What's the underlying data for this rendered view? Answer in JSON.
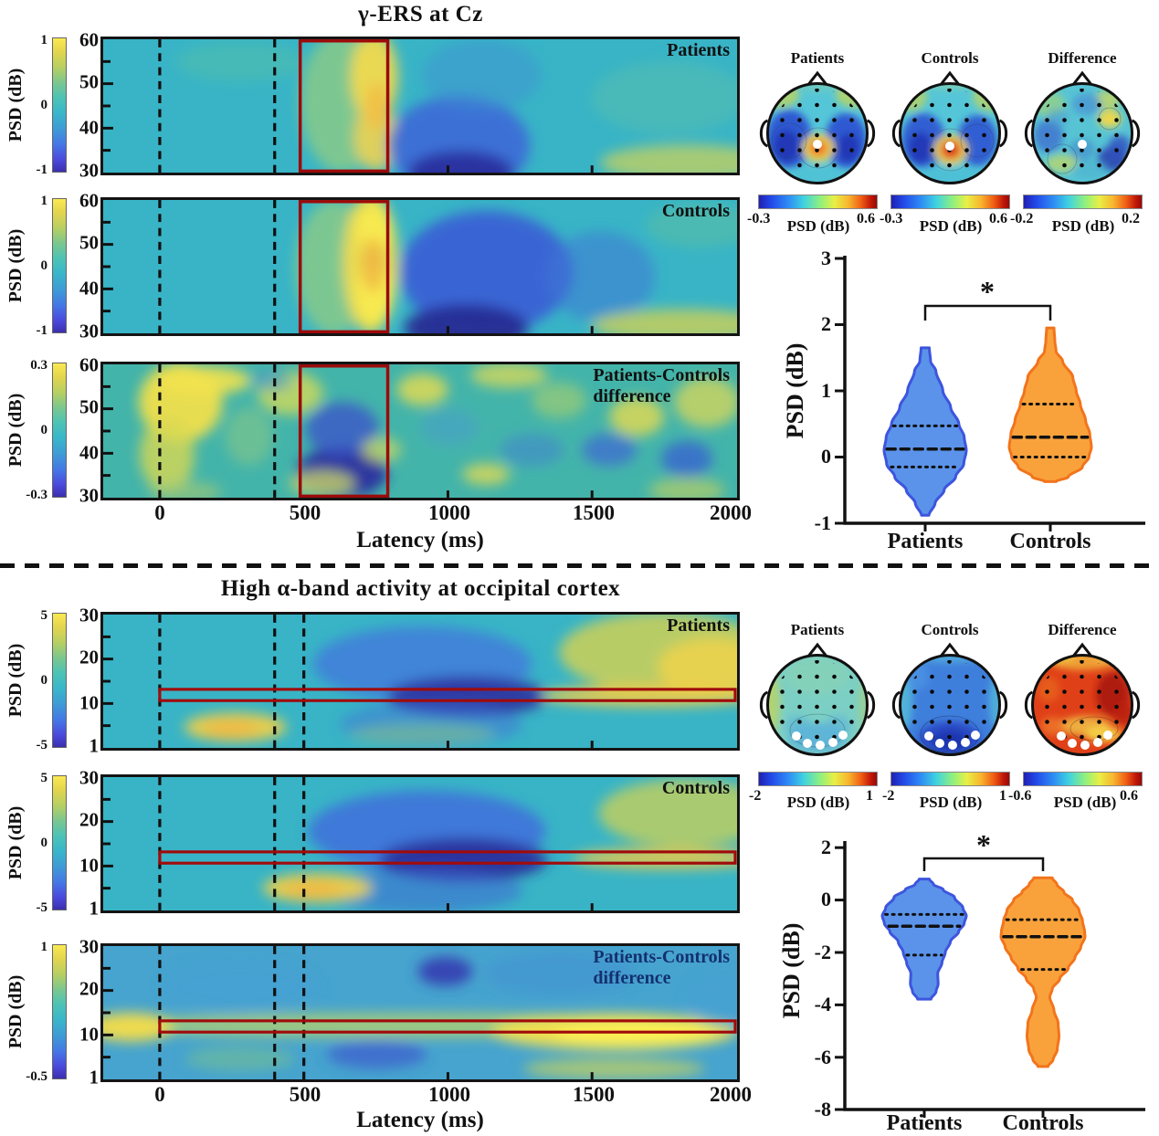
{
  "colors": {
    "roi_box": "#9c0a0a",
    "patients_fill": "#5b93ea",
    "patients_stroke": "#3d55dd",
    "controls_fill": "#f9a23c",
    "controls_stroke": "#f2741c"
  },
  "top": {
    "title": "γ-ERS at Cz",
    "psd_label": "PSD (dB)",
    "panels": [
      {
        "label": "Patients",
        "label2": "",
        "cbar": [
          "1",
          "0",
          "-1"
        ],
        "yticks": [
          "60",
          "50",
          "40",
          "30"
        ]
      },
      {
        "label": "Controls",
        "label2": "",
        "cbar": [
          "1",
          "0",
          "-1"
        ],
        "yticks": [
          "60",
          "50",
          "40",
          "30"
        ]
      },
      {
        "label": "Patients-Controls",
        "label2": "difference",
        "cbar": [
          "0.3",
          "0",
          "-0.3"
        ],
        "yticks": [
          "60",
          "50",
          "40",
          "30"
        ]
      }
    ],
    "xticks": [
      "0",
      "500",
      "1000",
      "1500",
      "2000"
    ],
    "xlabel": "Latency (ms)",
    "topo": {
      "titles": [
        "Patients",
        "Controls",
        "Difference"
      ],
      "cbars": [
        {
          "min": "-0.3",
          "max": "0.6",
          "label": "PSD (dB)"
        },
        {
          "min": "-0.3",
          "max": "0.6",
          "label": "PSD (dB)"
        },
        {
          "min": "-0.2",
          "max": "0.2",
          "label": "PSD (dB)"
        }
      ]
    },
    "violin": {
      "ylabel": "PSD (dB)",
      "yticks": [
        "3",
        "2",
        "1",
        "0",
        "-1"
      ],
      "categories": [
        "Patients",
        "Controls"
      ],
      "sig": "*"
    }
  },
  "bottom": {
    "title": "High α-band activity at occipital cortex",
    "psd_label": "PSD (dB)",
    "panels": [
      {
        "label": "Patients",
        "label2": "",
        "cbar": [
          "5",
          "0",
          "-5"
        ],
        "yticks": [
          "30",
          "20",
          "10",
          "1"
        ]
      },
      {
        "label": "Controls",
        "label2": "",
        "cbar": [
          "5",
          "0",
          "-5"
        ],
        "yticks": [
          "30",
          "20",
          "10",
          "1"
        ]
      },
      {
        "label": "Patients-Controls",
        "label2": "difference",
        "cbar": [
          "1",
          "-0.5"
        ],
        "yticks": [
          "30",
          "20",
          "10",
          "1"
        ]
      }
    ],
    "xticks": [
      "0",
      "500",
      "1000",
      "1500",
      "2000"
    ],
    "xlabel": "Latency (ms)",
    "topo": {
      "titles": [
        "Patients",
        "Controls",
        "Difference"
      ],
      "cbars": [
        {
          "min": "-2",
          "max": "1",
          "label": "PSD (dB)"
        },
        {
          "min": "-2",
          "max": "1",
          "label": "PSD (dB)"
        },
        {
          "min": "-0.6",
          "max": "0.6",
          "label": "PSD (dB)"
        }
      ]
    },
    "violin": {
      "ylabel": "PSD (dB)",
      "yticks": [
        "2",
        "0",
        "-2",
        "-4",
        "-6",
        "-8"
      ],
      "categories": [
        "Patients",
        "Controls"
      ],
      "sig": "*"
    }
  },
  "chart_data": [
    {
      "id": "gamma_tf_maps",
      "type": "heatmap",
      "title": "γ-ERS at Cz",
      "panels": [
        "Patients",
        "Controls",
        "Patients-Controls difference"
      ],
      "xlabel": "Latency (ms)",
      "x_ticks_ms": [
        0,
        500,
        1000,
        1500,
        2000
      ],
      "x_range_ms": [
        -200,
        2000
      ],
      "y_ticks_hz": [
        60,
        50,
        40,
        30
      ],
      "y_range_hz": [
        30,
        60
      ],
      "colorbar_label": "PSD (dB)",
      "colorbar_ticks": [
        [
          1,
          0,
          -1
        ],
        [
          1,
          0,
          -1
        ],
        [
          0.3,
          0,
          -0.3
        ]
      ],
      "event_lines_ms": [
        0,
        400
      ],
      "roi_box": {
        "x_ms": [
          500,
          800
        ],
        "y_hz": [
          30,
          60
        ]
      },
      "summary": "Both groups show gamma ERS (warm band) at 500-800 ms inside the red ROI; the difference panel shows a negative (blue) cluster inside the ROI"
    },
    {
      "id": "gamma_topomaps",
      "type": "topomap",
      "maps": [
        {
          "title": "Patients",
          "colorbar": {
            "min": -0.3,
            "max": 0.6,
            "label": "PSD (dB)"
          }
        },
        {
          "title": "Controls",
          "colorbar": {
            "min": -0.3,
            "max": 0.6,
            "label": "PSD (dB)"
          }
        },
        {
          "title": "Difference",
          "colorbar": {
            "min": -0.2,
            "max": 0.2,
            "label": "PSD (dB)"
          }
        }
      ],
      "highlight_electrode": "Cz marked with white dot"
    },
    {
      "id": "gamma_violin",
      "type": "violin",
      "ylabel": "PSD (dB)",
      "ylim": [
        -1,
        3
      ],
      "yticks": [
        3,
        2,
        1,
        0,
        -1
      ],
      "categories": [
        "Patients",
        "Controls"
      ],
      "significance": "*",
      "series": [
        {
          "name": "Patients",
          "fill": "#5b93ea",
          "stroke": "#3d55dd",
          "max": 1.65,
          "q3": 0.47,
          "median": 0.12,
          "q1": -0.15,
          "min": -0.88,
          "profile": [
            [
              1.65,
              0.1
            ],
            [
              1.45,
              0.13
            ],
            [
              1.3,
              0.26
            ],
            [
              1.0,
              0.43
            ],
            [
              0.75,
              0.62
            ],
            [
              0.5,
              0.82
            ],
            [
              0.3,
              0.95
            ],
            [
              0.1,
              1.0
            ],
            [
              -0.1,
              0.94
            ],
            [
              -0.3,
              0.74
            ],
            [
              -0.5,
              0.46
            ],
            [
              -0.7,
              0.24
            ],
            [
              -0.88,
              0.09
            ]
          ]
        },
        {
          "name": "Controls",
          "fill": "#f9a23c",
          "stroke": "#f2741c",
          "max": 1.95,
          "q3": 0.8,
          "median": 0.3,
          "q1": 0.0,
          "min": -0.37,
          "profile": [
            [
              1.95,
              0.09
            ],
            [
              1.75,
              0.11
            ],
            [
              1.6,
              0.14
            ],
            [
              1.45,
              0.3
            ],
            [
              1.2,
              0.55
            ],
            [
              1.0,
              0.63
            ],
            [
              0.8,
              0.73
            ],
            [
              0.55,
              0.86
            ],
            [
              0.35,
              0.96
            ],
            [
              0.15,
              1.0
            ],
            [
              0.0,
              0.94
            ],
            [
              -0.15,
              0.78
            ],
            [
              -0.3,
              0.44
            ],
            [
              -0.37,
              0.14
            ]
          ]
        }
      ]
    },
    {
      "id": "alpha_tf_maps",
      "type": "heatmap",
      "title": "High α-band activity at occipital cortex",
      "panels": [
        "Patients",
        "Controls",
        "Patients-Controls difference"
      ],
      "xlabel": "Latency (ms)",
      "x_ticks_ms": [
        0,
        500,
        1000,
        1500,
        2000
      ],
      "x_range_ms": [
        -200,
        2000
      ],
      "y_ticks_hz": [
        30,
        20,
        10,
        1
      ],
      "y_range_hz": [
        1,
        30
      ],
      "colorbar_label": "PSD (dB)",
      "colorbar_ticks": [
        [
          5,
          0,
          -5
        ],
        [
          5,
          0,
          -5
        ],
        [
          1,
          -0.5
        ]
      ],
      "event_lines_ms": [
        0,
        400,
        500
      ],
      "roi_box": {
        "x_ms": [
          0,
          2000
        ],
        "y_hz": [
          11,
          13
        ]
      },
      "summary": "High-alpha (~11-13 Hz) band marked with long red ROI; desynchronization (blue) around 600-1300 ms and later rebound; difference panel shows positive (yellow) band along ROI"
    },
    {
      "id": "alpha_topomaps",
      "type": "topomap",
      "maps": [
        {
          "title": "Patients",
          "colorbar": {
            "min": -2,
            "max": 1,
            "label": "PSD (dB)"
          }
        },
        {
          "title": "Controls",
          "colorbar": {
            "min": -2,
            "max": 1,
            "label": "PSD (dB)"
          }
        },
        {
          "title": "Difference",
          "colorbar": {
            "min": -0.6,
            "max": 0.6,
            "label": "PSD (dB)"
          }
        }
      ],
      "highlight_electrodes": "occipital electrodes marked with white dots"
    },
    {
      "id": "alpha_violin",
      "type": "violin",
      "ylabel": "PSD (dB)",
      "ylim": [
        -8,
        2
      ],
      "yticks": [
        2,
        0,
        -2,
        -4,
        -6,
        -8
      ],
      "categories": [
        "Patients",
        "Controls"
      ],
      "significance": "*",
      "series": [
        {
          "name": "Patients",
          "fill": "#5b93ea",
          "stroke": "#3d55dd",
          "max": 0.8,
          "q3": -0.55,
          "median": -1.0,
          "q1": -2.1,
          "min": -3.78,
          "profile": [
            [
              0.8,
              0.12
            ],
            [
              0.6,
              0.22
            ],
            [
              0.4,
              0.45
            ],
            [
              0.1,
              0.72
            ],
            [
              -0.3,
              0.92
            ],
            [
              -0.6,
              1.0
            ],
            [
              -0.9,
              0.95
            ],
            [
              -1.2,
              0.82
            ],
            [
              -1.6,
              0.62
            ],
            [
              -2.0,
              0.5
            ],
            [
              -2.4,
              0.42
            ],
            [
              -2.8,
              0.32
            ],
            [
              -3.2,
              0.33
            ],
            [
              -3.5,
              0.28
            ],
            [
              -3.78,
              0.16
            ]
          ]
        },
        {
          "name": "Controls",
          "fill": "#f9a23c",
          "stroke": "#f2741c",
          "max": 0.85,
          "q3": -0.75,
          "median": -1.4,
          "q1": -2.65,
          "min": -6.35,
          "profile": [
            [
              0.85,
              0.22
            ],
            [
              0.6,
              0.33
            ],
            [
              0.3,
              0.5
            ],
            [
              0.0,
              0.7
            ],
            [
              -0.4,
              0.86
            ],
            [
              -0.8,
              0.94
            ],
            [
              -1.2,
              0.99
            ],
            [
              -1.4,
              1.0
            ],
            [
              -1.8,
              0.9
            ],
            [
              -2.2,
              0.76
            ],
            [
              -2.6,
              0.6
            ],
            [
              -3.0,
              0.4
            ],
            [
              -3.4,
              0.22
            ],
            [
              -3.7,
              0.16
            ],
            [
              -4.2,
              0.26
            ],
            [
              -4.7,
              0.36
            ],
            [
              -5.2,
              0.38
            ],
            [
              -5.7,
              0.34
            ],
            [
              -6.1,
              0.24
            ],
            [
              -6.35,
              0.12
            ]
          ]
        }
      ]
    }
  ]
}
